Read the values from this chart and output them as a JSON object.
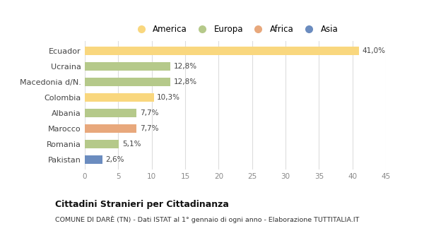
{
  "categories": [
    "Ecuador",
    "Ucraina",
    "Macedonia d/N.",
    "Colombia",
    "Albania",
    "Marocco",
    "Romania",
    "Pakistan"
  ],
  "values": [
    41.0,
    12.8,
    12.8,
    10.3,
    7.7,
    7.7,
    5.1,
    2.6
  ],
  "labels": [
    "41,0%",
    "12,8%",
    "12,8%",
    "10,3%",
    "7,7%",
    "7,7%",
    "5,1%",
    "2,6%"
  ],
  "colors": [
    "#f9d77e",
    "#b5c98a",
    "#b5c98a",
    "#f9d77e",
    "#b5c98a",
    "#e8a87c",
    "#b5c98a",
    "#6b8cbf"
  ],
  "legend": {
    "America": "#f9d77e",
    "Europa": "#b5c98a",
    "Africa": "#e8a87c",
    "Asia": "#6b8cbf"
  },
  "xlim": [
    0,
    45
  ],
  "xticks": [
    0,
    5,
    10,
    15,
    20,
    25,
    30,
    35,
    40,
    45
  ],
  "title": "Cittadini Stranieri per Cittadinanza",
  "subtitle": "COMUNE DI DARÈ (TN) - Dati ISTAT al 1° gennaio di ogni anno - Elaborazione TUTTITALIA.IT",
  "background_color": "#ffffff",
  "grid_color": "#dddddd"
}
